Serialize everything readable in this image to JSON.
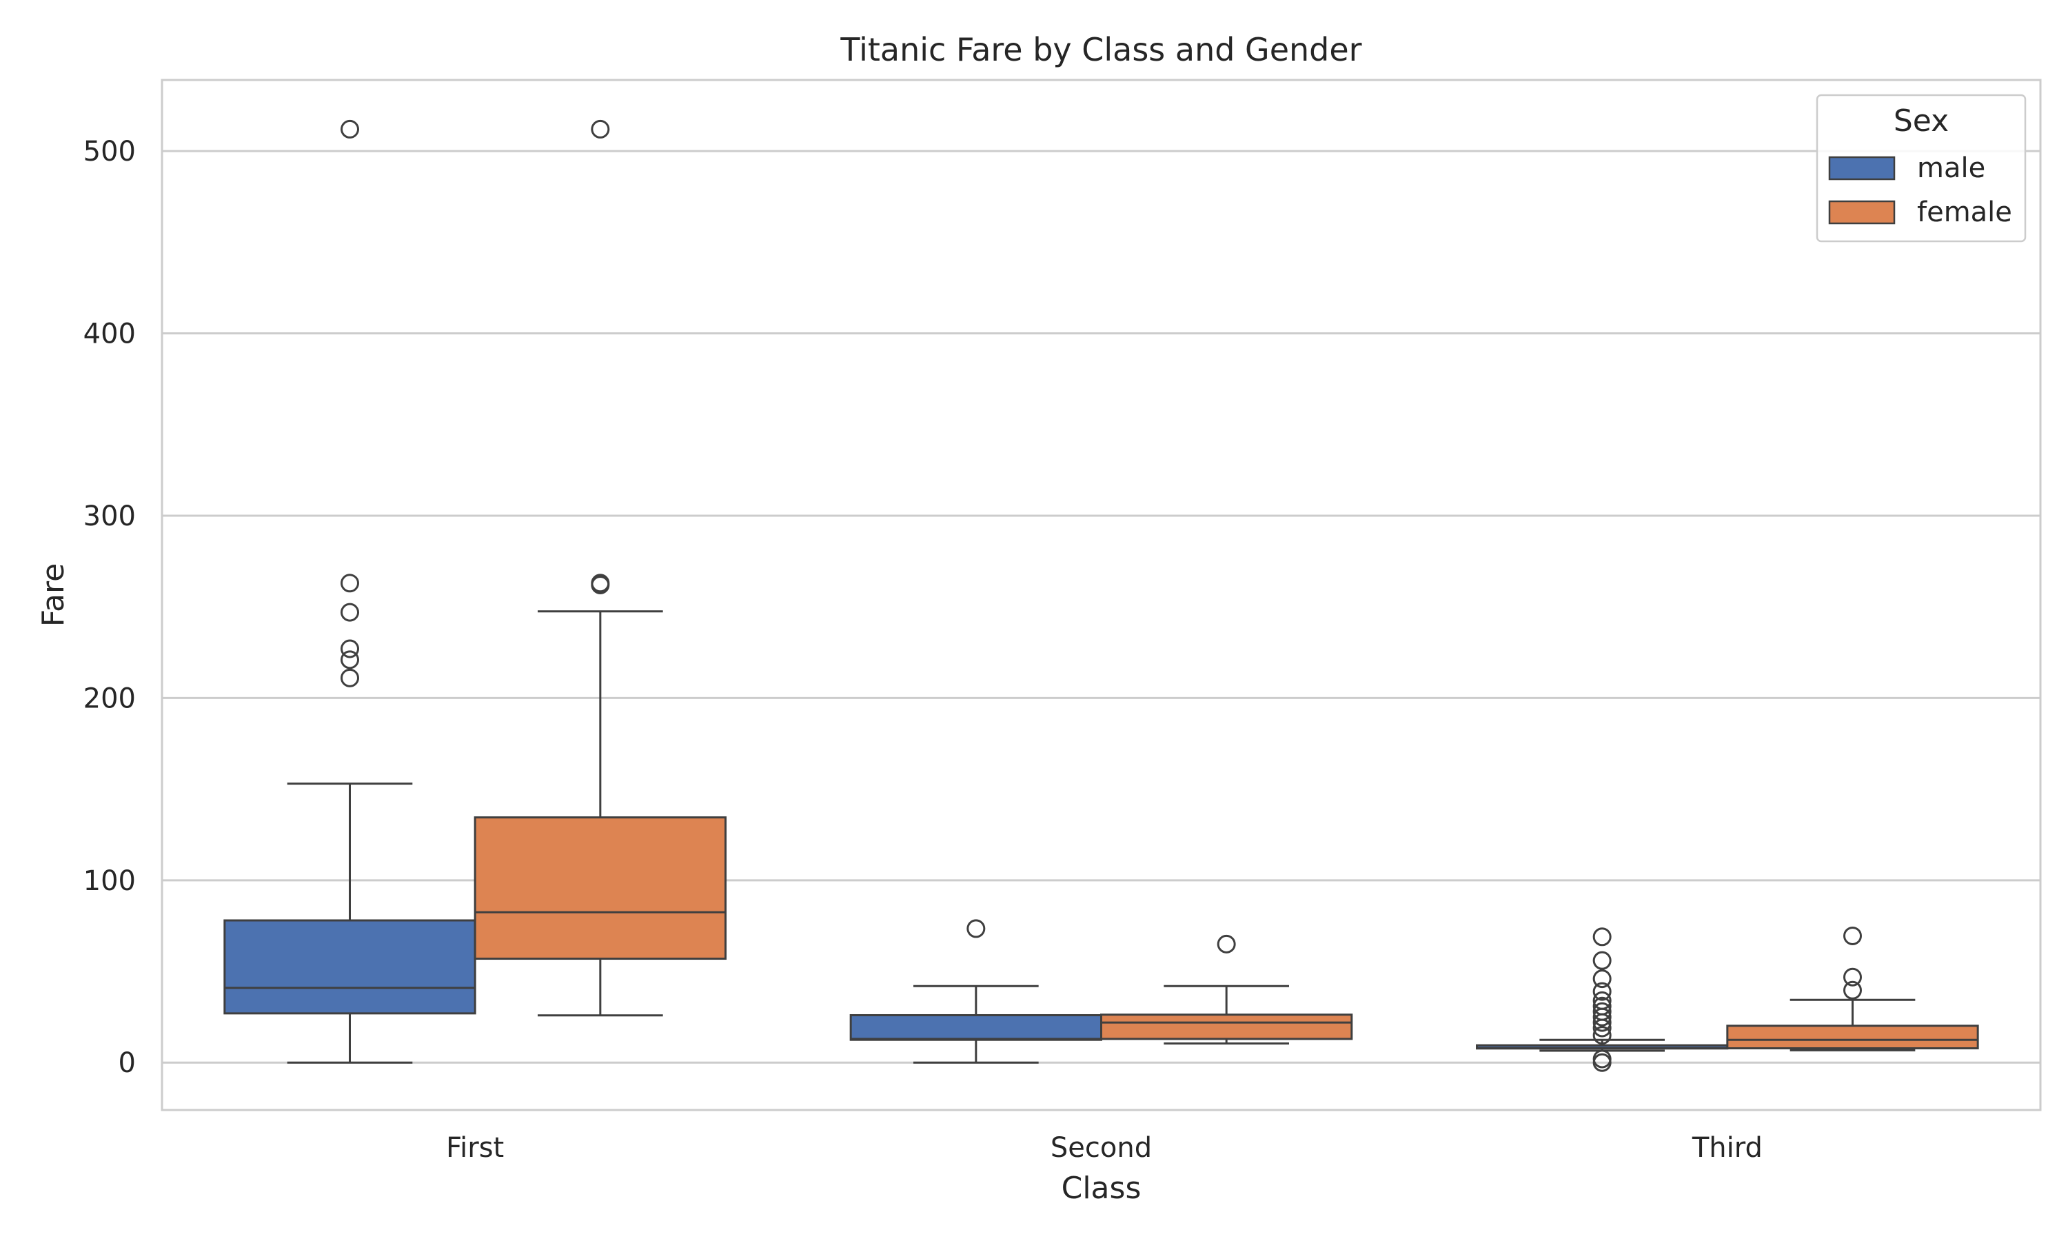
{
  "chart_data": {
    "type": "box",
    "title": "Titanic Fare by Class and Gender",
    "xlabel": "Class",
    "ylabel": "Fare",
    "categories": [
      "First",
      "Second",
      "Third"
    ],
    "ylim": [
      -26,
      539
    ],
    "yticks": [
      0,
      100,
      200,
      300,
      400,
      500
    ],
    "grid": "horizontal",
    "legend": {
      "title": "Sex",
      "position": "top-right"
    },
    "series": [
      {
        "name": "male",
        "color": "#4c72b0",
        "boxes": [
          {
            "category": "First",
            "whisker_low": 0,
            "q1": 27,
            "median": 41,
            "q3": 78,
            "whisker_high": 153,
            "outliers": [
              211,
              221,
              227,
              247,
              263,
              512
            ]
          },
          {
            "category": "Second",
            "whisker_low": 0,
            "q1": 12.5,
            "median": 13,
            "q3": 26,
            "whisker_high": 42,
            "outliers": [
              73.5
            ]
          },
          {
            "category": "Third",
            "whisker_low": 6.5,
            "q1": 7.75,
            "median": 8,
            "q3": 9.5,
            "whisker_high": 12.5,
            "outliers": [
              0,
              2,
              15,
              19,
              22,
              25,
              28,
              31,
              34,
              39,
              46,
              56,
              69
            ]
          }
        ]
      },
      {
        "name": "female",
        "color": "#dd8452",
        "boxes": [
          {
            "category": "First",
            "whisker_low": 25.9,
            "q1": 57,
            "median": 82.5,
            "q3": 134.5,
            "whisker_high": 247.5,
            "outliers": [
              262,
              263,
              512
            ]
          },
          {
            "category": "Second",
            "whisker_low": 10.5,
            "q1": 13,
            "median": 22,
            "q3": 26.3,
            "whisker_high": 42,
            "outliers": [
              65
            ]
          },
          {
            "category": "Third",
            "whisker_low": 6.75,
            "q1": 7.85,
            "median": 12.5,
            "q3": 20.2,
            "whisker_high": 34.4,
            "outliers": [
              39.7,
              46.9,
              69.5
            ]
          }
        ]
      }
    ]
  }
}
